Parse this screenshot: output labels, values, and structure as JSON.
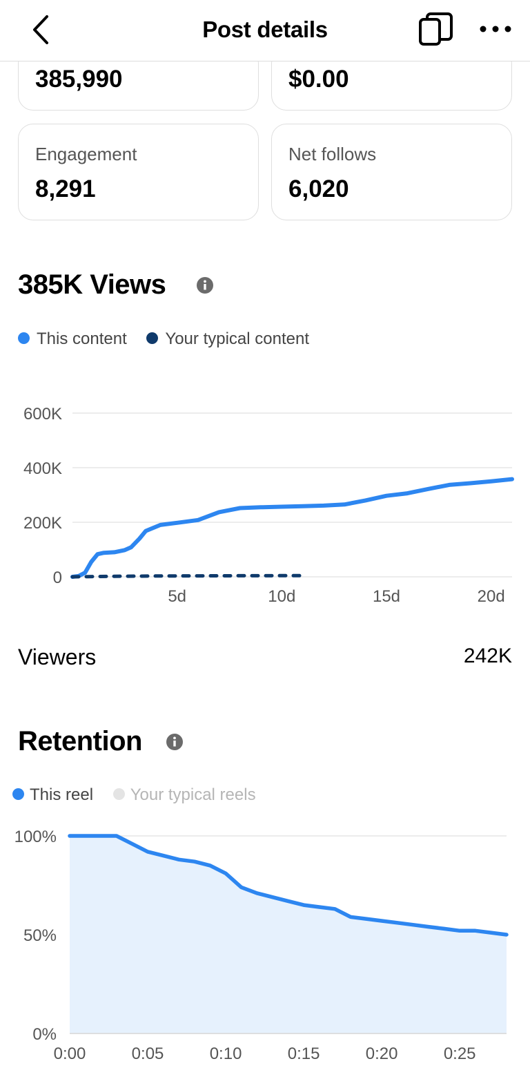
{
  "header": {
    "title": "Post details",
    "back_icon": "chevron-left-icon",
    "copy_icon": "copy-icon",
    "more_icon": "more-horizontal-icon"
  },
  "metrics": [
    {
      "label": "",
      "value": "385,990"
    },
    {
      "label": "",
      "value": "$0.00"
    },
    {
      "label": "Engagement",
      "value": "8,291"
    },
    {
      "label": "Net follows",
      "value": "6,020"
    }
  ],
  "views_section": {
    "title": "385K Views",
    "legend": [
      {
        "label": "This content",
        "color": "#2d86f0"
      },
      {
        "label": "Your typical content",
        "color": "#0f3a6b"
      }
    ]
  },
  "viewers": {
    "label": "Viewers",
    "value": "242K"
  },
  "retention_section": {
    "title": "Retention",
    "legend": [
      {
        "label": "This reel",
        "color": "#2d86f0"
      },
      {
        "label": "Your typical reels",
        "color": "#e4e4e4"
      }
    ]
  },
  "colors": {
    "accent": "#2d86f0",
    "typical": "#0f3a6b",
    "area_fill": "#e6f1fd",
    "grid": "#e6e6e6"
  },
  "chart_data": [
    {
      "type": "line",
      "y_ticks": [
        "600K",
        "400K",
        "200K",
        "0"
      ],
      "x_ticks": [
        "5d",
        "10d",
        "15d",
        "20d"
      ],
      "ylim": [
        0,
        600000
      ],
      "xlim": [
        0,
        21
      ],
      "grid": true,
      "legend_position": "top-left",
      "series": [
        {
          "name": "This content",
          "style": "solid",
          "x": [
            0,
            0.3,
            0.6,
            0.9,
            1.2,
            1.5,
            2,
            2.5,
            2.8,
            3.2,
            3.5,
            4.2,
            5,
            6,
            7,
            8,
            9,
            10,
            11,
            12,
            13,
            14,
            15,
            16,
            17,
            18,
            19,
            20,
            21
          ],
          "y": [
            0,
            3000,
            15000,
            55000,
            83000,
            88000,
            90000,
            98000,
            108000,
            140000,
            168000,
            190000,
            198000,
            208000,
            237000,
            252000,
            255000,
            257000,
            259000,
            261000,
            265000,
            280000,
            297000,
            306000,
            322000,
            337000,
            343000,
            350000,
            358000
          ]
        },
        {
          "name": "Your typical content",
          "style": "dashed",
          "x": [
            0,
            2,
            4,
            6,
            8,
            10,
            11
          ],
          "y": [
            0,
            2000,
            3000,
            3500,
            4000,
            4200,
            4300
          ]
        }
      ]
    },
    {
      "type": "area",
      "y_ticks": [
        "100%",
        "50%",
        "0%"
      ],
      "x_ticks": [
        "0:00",
        "0:05",
        "0:10",
        "0:15",
        "0:20",
        "0:25"
      ],
      "ylim": [
        0,
        100
      ],
      "xlim": [
        0,
        28
      ],
      "grid": true,
      "legend_position": "top-left",
      "series": [
        {
          "name": "This reel",
          "x": [
            0,
            1,
            2,
            3,
            4,
            5,
            6,
            7,
            8,
            9,
            10,
            11,
            12,
            13,
            14,
            15,
            16,
            17,
            18,
            19,
            20,
            21,
            22,
            23,
            24,
            25,
            26,
            27,
            28
          ],
          "y": [
            100,
            100,
            100,
            100,
            96,
            92,
            90,
            88,
            87,
            85,
            81,
            74,
            71,
            69,
            67,
            65,
            64,
            63,
            59,
            58,
            57,
            56,
            55,
            54,
            53,
            52,
            52,
            51,
            50
          ]
        }
      ]
    }
  ]
}
